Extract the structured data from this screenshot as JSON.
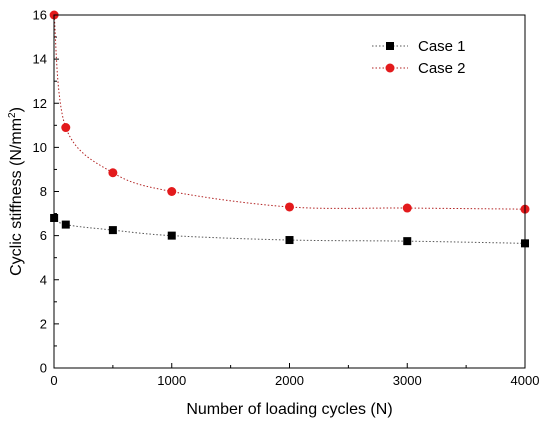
{
  "chart_data": {
    "type": "line",
    "xlabel": "Number of loading cycles (N)",
    "ylabel": "Cyclic stiffness (N/mm",
    "ylabel_sup": "2",
    "ylabel_end": ")",
    "xlim": [
      0,
      4000
    ],
    "ylim": [
      0,
      16
    ],
    "xticks": [
      0,
      1000,
      2000,
      3000,
      4000
    ],
    "yticks": [
      0,
      2,
      4,
      6,
      8,
      10,
      12,
      14,
      16
    ],
    "grid": false,
    "legend_position": "top-right",
    "series": [
      {
        "name": "Case 1",
        "marker": "square",
        "color": "#000000",
        "line_color": "#555555",
        "x": [
          1,
          100,
          500,
          1000,
          2000,
          3000,
          4000
        ],
        "y": [
          6.8,
          6.5,
          6.25,
          6.0,
          5.8,
          5.75,
          5.65
        ]
      },
      {
        "name": "Case 2",
        "marker": "circle",
        "color": "#e31a1c",
        "line_color": "#b22222",
        "x": [
          1,
          100,
          500,
          1000,
          2000,
          3000,
          4000
        ],
        "y": [
          16.0,
          10.9,
          8.85,
          8.0,
          7.3,
          7.25,
          7.2
        ]
      }
    ]
  }
}
